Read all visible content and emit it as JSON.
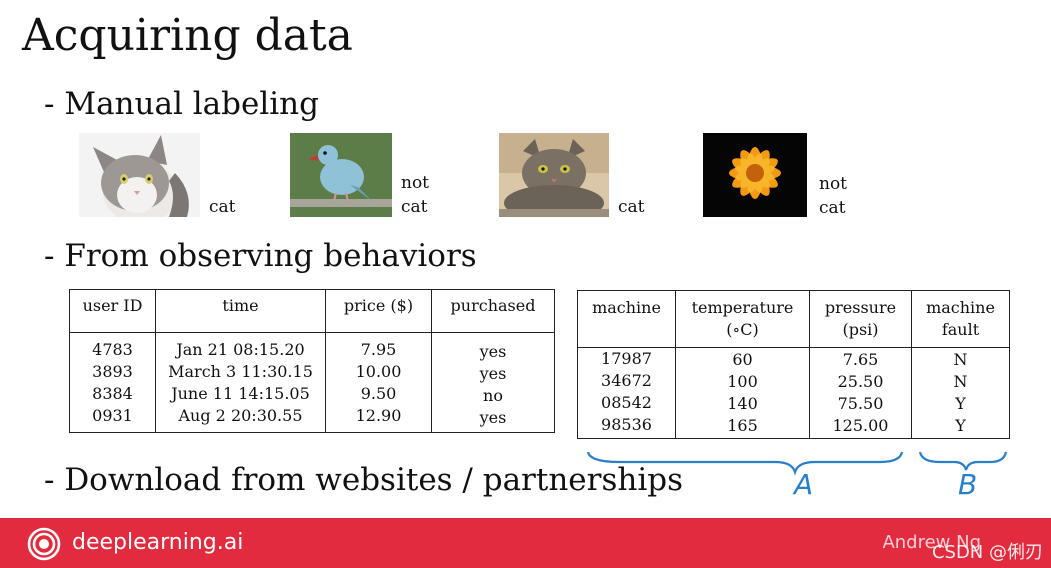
{
  "slide": {
    "title": "Acquiring data",
    "bullets": [
      "- Manual labeling",
      "- From observing behaviors",
      "- Download from websites / partnerships"
    ]
  },
  "images": [
    {
      "subject": "white-gray-cat",
      "label_lines": [
        "cat"
      ]
    },
    {
      "subject": "blue-bird",
      "label_lines": [
        "not",
        "cat"
      ]
    },
    {
      "subject": "tabby-cat",
      "label_lines": [
        "cat"
      ]
    },
    {
      "subject": "orange-flower",
      "label_lines": [
        "not",
        "cat"
      ]
    }
  ],
  "purchase_table": {
    "headers": [
      "user ID",
      "time",
      "price ($)",
      "purchased"
    ],
    "columns": [
      [
        "4783",
        "3893",
        "8384",
        "0931"
      ],
      [
        "Jan 21 08:15.20",
        "March 3 11:30.15",
        "June 11 14:15.05",
        "Aug 2 20:30.55"
      ],
      [
        "7.95",
        "10.00",
        "9.50",
        "12.90"
      ],
      [
        "yes",
        "yes",
        "no",
        "yes"
      ]
    ]
  },
  "machine_table": {
    "headers": [
      [
        "machine"
      ],
      [
        "temperature",
        "(∘C)"
      ],
      [
        "pressure",
        "(psi)"
      ],
      [
        "machine",
        "fault"
      ]
    ],
    "columns": [
      [
        "17987",
        "34672",
        "08542",
        "98536"
      ],
      [
        "60",
        "100",
        "140",
        "165"
      ],
      [
        "7.65",
        "25.50",
        "75.50",
        "125.00"
      ],
      [
        "N",
        "N",
        "Y",
        "Y"
      ]
    ]
  },
  "annotations": {
    "brace_a": "A",
    "brace_b": "B"
  },
  "footer": {
    "brand": "deeplearning.ai",
    "author": "Andrew Ng",
    "watermark": "CSDN @俐刃"
  },
  "colors": {
    "footer_bg": "#e22b3f",
    "annotation": "#2a7fc9"
  }
}
